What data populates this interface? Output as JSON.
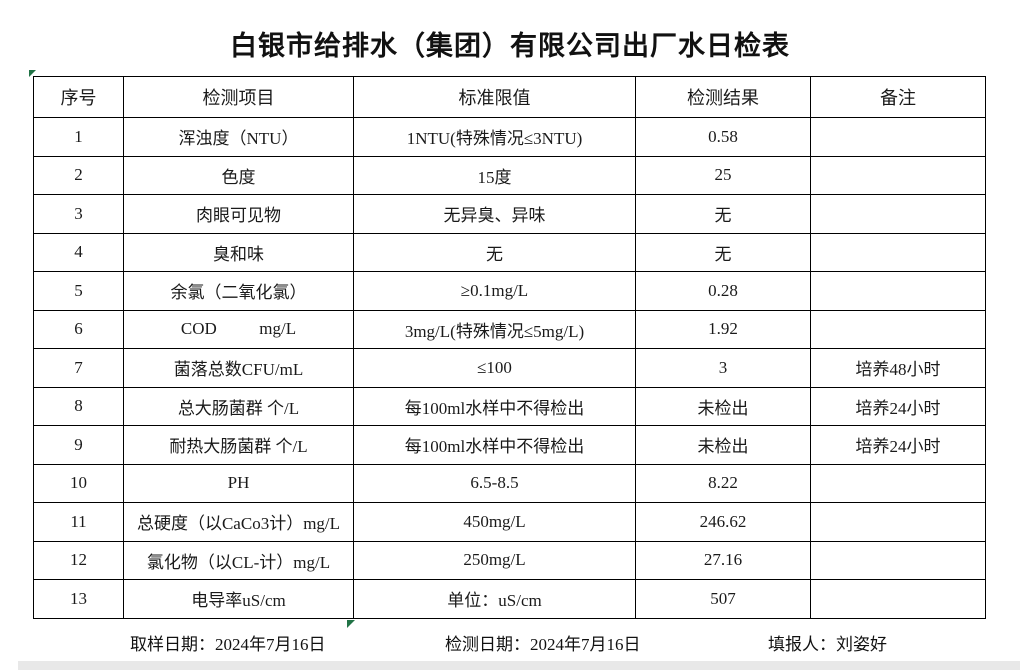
{
  "title": "白银市给排水（集团）有限公司出厂水日检表",
  "table": {
    "headers": [
      "序号",
      "检测项目",
      "标准限值",
      "检测结果",
      "备注"
    ],
    "rows": [
      {
        "no": "1",
        "item": "浑浊度（NTU）",
        "limit": "1NTU(特殊情况≤3NTU)",
        "result": "0.58",
        "note": ""
      },
      {
        "no": "2",
        "item": "色度",
        "limit": "15度",
        "result": "25",
        "note": ""
      },
      {
        "no": "3",
        "item": "肉眼可见物",
        "limit": "无异臭、异味",
        "result": "无",
        "note": ""
      },
      {
        "no": "4",
        "item": "臭和味",
        "limit": "无",
        "result": "无",
        "note": ""
      },
      {
        "no": "5",
        "item": "余氯（二氧化氯）",
        "limit": "≥0.1mg/L",
        "result": "0.28",
        "note": ""
      },
      {
        "no": "6",
        "item": "COD          mg/L",
        "limit": "3mg/L(特殊情况≤5mg/L)",
        "result": "1.92",
        "note": ""
      },
      {
        "no": "7",
        "item": "菌落总数CFU/mL",
        "limit": "≤100",
        "result": "3",
        "note": "培养48小时"
      },
      {
        "no": "8",
        "item": "总大肠菌群 个/L",
        "limit": "每100ml水样中不得检出",
        "result": "未检出",
        "note": "培养24小时"
      },
      {
        "no": "9",
        "item": "耐热大肠菌群 个/L",
        "limit": "每100ml水样中不得检出",
        "result": "未检出",
        "note": "培养24小时"
      },
      {
        "no": "10",
        "item": "PH",
        "limit": "6.5-8.5",
        "result": "8.22",
        "note": ""
      },
      {
        "no": "11",
        "item": "总硬度（以CaCo3计）mg/L",
        "limit": "450mg/L",
        "result": "246.62",
        "note": ""
      },
      {
        "no": "12",
        "item": "氯化物（以CL-计）mg/L",
        "limit": "250mg/L",
        "result": "27.16",
        "note": ""
      },
      {
        "no": "13",
        "item": "电导率uS/cm",
        "limit": "单位：uS/cm",
        "result": "507",
        "note": ""
      }
    ]
  },
  "footer": {
    "sampling_date": "取样日期：2024年7月16日",
    "test_date": "检测日期：2024年7月16日",
    "reporter": "填报人：刘姿好"
  },
  "colors": {
    "excel_marker_green": "#217346",
    "bottom_bar_gray": "#e8e8e8"
  }
}
